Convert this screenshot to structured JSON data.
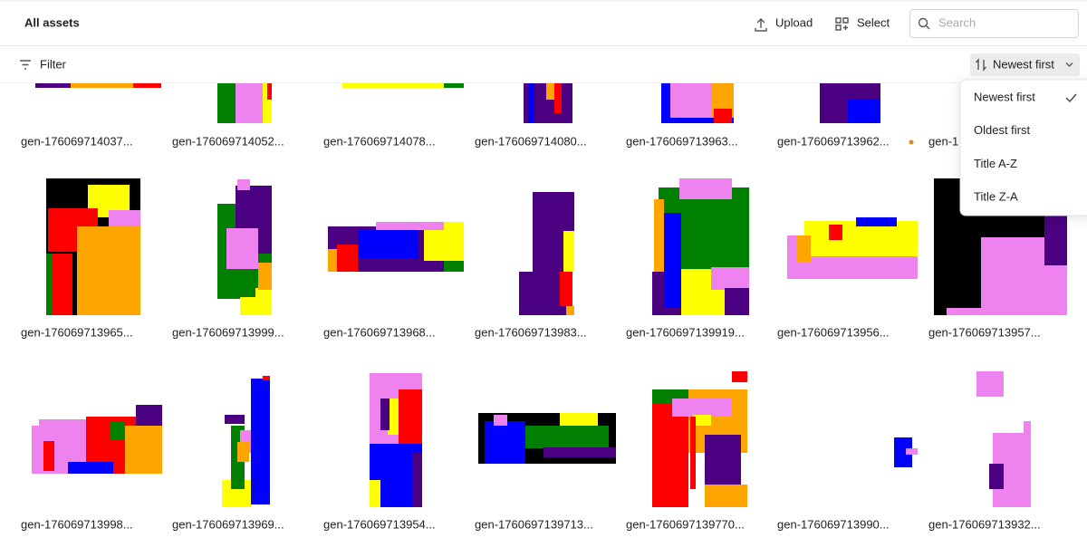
{
  "header": {
    "title": "All assets",
    "upload": "Upload",
    "select": "Select",
    "search_placeholder": "Search"
  },
  "toolbar": {
    "filter": "Filter",
    "sort": "Newest first"
  },
  "sort_menu": {
    "options": [
      "Newest first",
      "Oldest first",
      "Title A-Z",
      "Title Z-A"
    ]
  },
  "assets": [
    "gen-176069714037...",
    "gen-176069714052...",
    "gen-176069714078...",
    "gen-176069714080...",
    "gen-176069713963...",
    "gen-176069713962...",
    "gen-1",
    "gen-176069713965...",
    "gen-176069713999...",
    "gen-176069713968...",
    "gen-176069713983...",
    "gen-1760697139919...",
    "gen-176069713956...",
    "gen-176069713957...",
    "gen-176069713998...",
    "gen-176069713969...",
    "gen-176069713954...",
    "gen-1760697139713...",
    "gen-1760697139770...",
    "gen-176069713990...",
    "gen-176069713932..."
  ]
}
